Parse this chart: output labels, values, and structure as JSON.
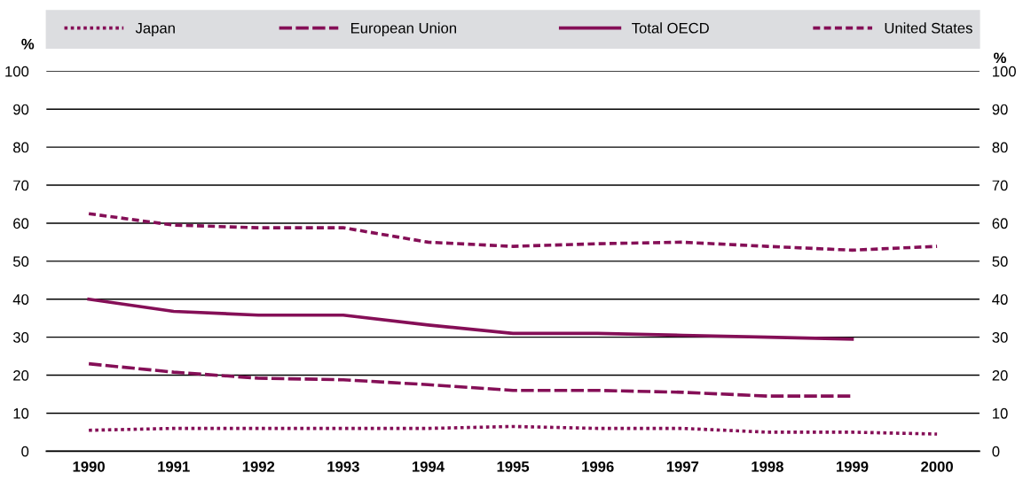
{
  "chart_data": {
    "type": "line",
    "ylabel": "%",
    "y2label": "%",
    "categories": [
      "1990",
      "1991",
      "1992",
      "1993",
      "1994",
      "1995",
      "1996",
      "1997",
      "1998",
      "1999",
      "2000"
    ],
    "series": [
      {
        "name": "Japan",
        "color": "#850f57",
        "line_style": "dotted",
        "values": [
          5.5,
          6,
          6,
          6,
          6,
          6.5,
          6,
          6,
          5,
          5,
          4.5
        ]
      },
      {
        "name": "European Union",
        "color": "#850f57",
        "line_style": "longdash",
        "values": [
          23,
          20.8,
          19.2,
          18.8,
          17.5,
          16,
          16,
          15.5,
          14.5,
          14.5,
          null
        ]
      },
      {
        "name": "Total OECD",
        "color": "#850f57",
        "line_style": "solid",
        "values": [
          40,
          36.8,
          35.8,
          35.8,
          33.2,
          31,
          31,
          30.5,
          30,
          29.5,
          null
        ]
      },
      {
        "name": "United States",
        "color": "#850f57",
        "line_style": "dashed",
        "values": [
          62.5,
          59.5,
          58.8,
          58.8,
          55,
          53.9,
          54.6,
          55,
          53.9,
          52.9,
          53.9
        ]
      }
    ],
    "ylim": [
      0,
      100
    ],
    "yticks": [
      0,
      10,
      20,
      30,
      40,
      50,
      60,
      70,
      80,
      90,
      100
    ],
    "y2lim": [
      0,
      100
    ],
    "y2ticks": [
      0,
      10,
      20,
      30,
      40,
      50,
      60,
      70,
      80,
      90,
      100
    ],
    "grid": "y",
    "legend": "top",
    "marker": "none"
  }
}
